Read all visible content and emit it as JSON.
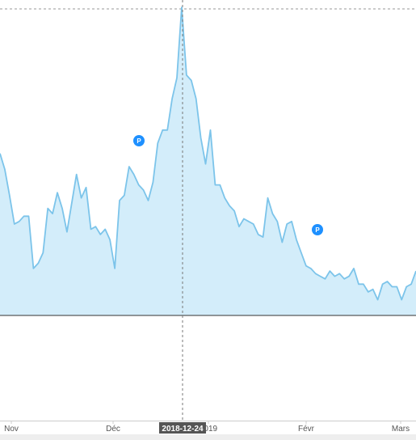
{
  "chart_data": {
    "type": "area",
    "title": "",
    "xlabel": "",
    "ylabel": "",
    "x_tick_labels": [
      "Nov",
      "Déc",
      "2019",
      "Févr",
      "Mars"
    ],
    "crosshair": {
      "date": "2018-12-24",
      "label": "2018-12-24"
    },
    "markers": [
      {
        "label": "P",
        "date": "2018-12-11"
      },
      {
        "label": "P",
        "date": "2019-02-02"
      }
    ],
    "series": [
      {
        "values": [
          [
            0,
            62
          ],
          [
            1,
            56
          ],
          [
            2,
            46
          ],
          [
            3,
            35
          ],
          [
            4,
            36
          ],
          [
            5,
            38
          ],
          [
            6,
            38
          ],
          [
            7,
            18
          ],
          [
            8,
            20
          ],
          [
            9,
            24
          ],
          [
            10,
            41
          ],
          [
            11,
            39
          ],
          [
            12,
            47
          ],
          [
            13,
            41
          ],
          [
            14,
            32
          ],
          [
            15,
            43
          ],
          [
            16,
            54
          ],
          [
            17,
            45
          ],
          [
            18,
            49
          ],
          [
            19,
            33
          ],
          [
            20,
            34
          ],
          [
            21,
            31
          ],
          [
            22,
            33
          ],
          [
            23,
            29
          ],
          [
            24,
            18
          ],
          [
            25,
            44
          ],
          [
            26,
            46
          ],
          [
            27,
            57
          ],
          [
            28,
            54
          ],
          [
            29,
            50
          ],
          [
            30,
            48
          ],
          [
            31,
            44
          ],
          [
            32,
            51
          ],
          [
            33,
            66
          ],
          [
            34,
            71
          ],
          [
            35,
            71
          ],
          [
            36,
            83
          ],
          [
            37,
            91
          ],
          [
            38,
            118
          ],
          [
            39,
            92
          ],
          [
            40,
            90
          ],
          [
            41,
            83
          ],
          [
            42,
            68
          ],
          [
            43,
            58
          ],
          [
            44,
            71
          ],
          [
            45,
            50
          ],
          [
            46,
            50
          ],
          [
            47,
            45
          ],
          [
            48,
            42
          ],
          [
            49,
            40
          ],
          [
            50,
            34
          ],
          [
            51,
            37
          ],
          [
            52,
            36
          ],
          [
            53,
            35
          ],
          [
            54,
            31
          ],
          [
            55,
            30
          ],
          [
            56,
            45
          ],
          [
            57,
            39
          ],
          [
            58,
            36
          ],
          [
            59,
            28
          ],
          [
            60,
            35
          ],
          [
            61,
            36
          ],
          [
            62,
            29
          ],
          [
            63,
            24
          ],
          [
            64,
            19
          ],
          [
            65,
            18
          ],
          [
            66,
            16
          ],
          [
            67,
            15
          ],
          [
            68,
            14
          ],
          [
            69,
            17
          ],
          [
            70,
            15
          ],
          [
            71,
            16
          ],
          [
            72,
            14
          ],
          [
            73,
            15
          ],
          [
            74,
            18
          ],
          [
            75,
            12
          ],
          [
            76,
            12
          ],
          [
            77,
            9
          ],
          [
            78,
            10
          ],
          [
            79,
            6
          ],
          [
            80,
            12
          ],
          [
            81,
            13
          ],
          [
            82,
            11
          ],
          [
            83,
            11
          ],
          [
            84,
            6
          ],
          [
            85,
            11
          ],
          [
            86,
            12
          ],
          [
            87,
            17
          ]
        ]
      }
    ]
  },
  "colors": {
    "line": "#7cc4ea",
    "fill": "#d3edfa",
    "marker": "#1e90ff",
    "grid": "#999999",
    "baseline": "#333333"
  }
}
